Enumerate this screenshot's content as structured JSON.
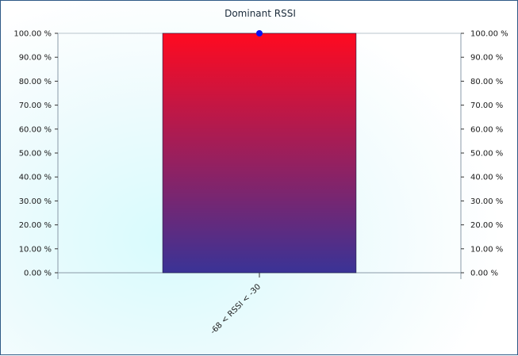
{
  "chart_data": {
    "type": "bar",
    "title": "Dominant RSSI",
    "categories": [
      "-68 < RSSI < -30"
    ],
    "series": [
      {
        "values": [
          100
        ]
      }
    ],
    "points": [
      100
    ],
    "ylim": [
      0,
      100
    ],
    "y_ticks": [
      "0.00 %",
      "10.00 %",
      "20.00 %",
      "30.00 %",
      "40.00 %",
      "50.00 %",
      "60.00 %",
      "70.00 %",
      "80.00 %",
      "90.00 %",
      "100.00 %"
    ],
    "y_tick_values": [
      0,
      10,
      20,
      30,
      40,
      50,
      60,
      70,
      80,
      90,
      100
    ],
    "dual_y_axis": true,
    "grid": false,
    "colors": {
      "bar_top": "#ff0a20",
      "bar_bottom": "#3a3396",
      "marker": "#0a10f0",
      "axis": "#8a9aa8",
      "frame": "#2f5a86"
    }
  }
}
